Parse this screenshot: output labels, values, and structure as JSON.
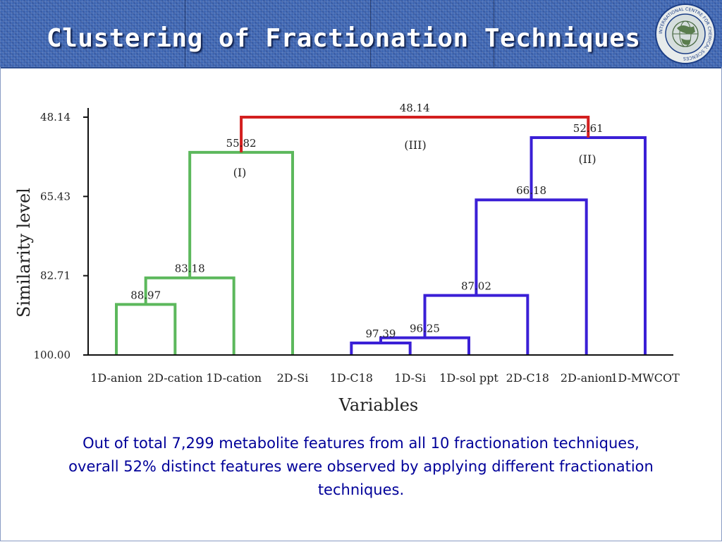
{
  "slide": {
    "title": "Clustering of Fractionation Techniques",
    "caption": "Out of total 7,299 metabolite features from all 10 fractionation techniques, overall 52% distinct features were observed by applying different fractionation techniques.",
    "logo_text": "INTERNATIONAL CENTRE FOR CHEMICAL SCIENCES"
  },
  "colors": {
    "header_bg": "#3f67b3",
    "title_text": "#ffffff",
    "caption_text": "#000099",
    "cluster_I": "#5cb85c",
    "cluster_II": "#3a1fd6",
    "cluster_III": "#d31f1f"
  },
  "chart_data": {
    "type": "dendrogram",
    "xlabel": "Variables",
    "ylabel": "Similarity level",
    "ylim": [
      100.0,
      48.14
    ],
    "y_ticks": [
      "48.14",
      "65.43",
      "82.71",
      "100.00"
    ],
    "leaves": [
      "1D-anion",
      "2D-cation",
      "1D-cation",
      "2D-Si",
      "1D-C18",
      "1D-Si",
      "1D-sol ppt",
      "2D-C18",
      "2D-anion",
      "1D-MWCOT"
    ],
    "merges": [
      {
        "label": "88.97",
        "left": [
          "1D-anion"
        ],
        "right": [
          "2D-cation"
        ],
        "cluster": "I"
      },
      {
        "label": "83.18",
        "left": [
          "1D-anion",
          "2D-cation"
        ],
        "right": [
          "1D-cation"
        ],
        "cluster": "I"
      },
      {
        "label": "55.82",
        "left": [
          "1D-anion",
          "2D-cation",
          "1D-cation"
        ],
        "right": [
          "2D-Si"
        ],
        "cluster": "I"
      },
      {
        "label": "97.39",
        "left": [
          "1D-C18"
        ],
        "right": [
          "1D-Si"
        ],
        "cluster": "II"
      },
      {
        "label": "96.25",
        "left": [
          "1D-C18",
          "1D-Si"
        ],
        "right": [
          "1D-sol ppt"
        ],
        "cluster": "II"
      },
      {
        "label": "87.02",
        "left": [
          "1D-C18",
          "1D-Si",
          "1D-sol ppt"
        ],
        "right": [
          "2D-C18"
        ],
        "cluster": "II"
      },
      {
        "label": "66.18",
        "left": [
          "1D-C18",
          "1D-Si",
          "1D-sol ppt",
          "2D-C18"
        ],
        "right": [
          "2D-anion"
        ],
        "cluster": "II"
      },
      {
        "label": "52.61",
        "left": [
          "1D-C18",
          "1D-Si",
          "1D-sol ppt",
          "2D-C18",
          "2D-anion"
        ],
        "right": [
          "1D-MWCOT"
        ],
        "cluster": "II"
      },
      {
        "label": "48.14",
        "left": [
          "1D-anion",
          "2D-cation",
          "1D-cation",
          "2D-Si"
        ],
        "right": [
          "1D-C18",
          "1D-Si",
          "1D-sol ppt",
          "2D-C18",
          "2D-anion",
          "1D-MWCOT"
        ],
        "cluster": "III"
      }
    ],
    "cluster_labels": [
      "(I)",
      "(II)",
      "(III)"
    ]
  }
}
